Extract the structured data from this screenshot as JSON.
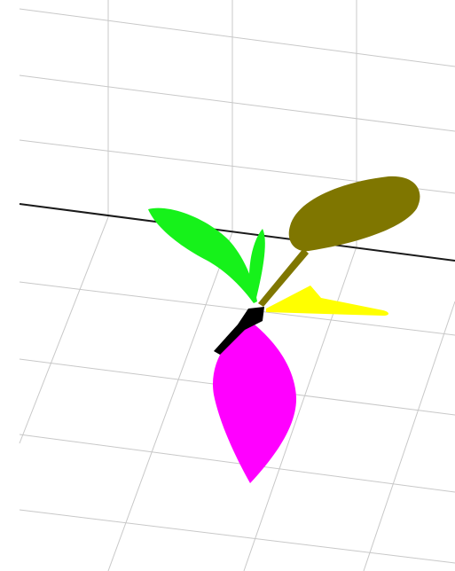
{
  "scene": {
    "background_color": "#ffffff",
    "grid_line_color": "#c8c8c8",
    "axis_line_color": "#1a1a1a",
    "segments": [
      {
        "id": "leaf-olive",
        "label": "",
        "color": "#7f7600"
      },
      {
        "id": "leaf-green",
        "label": "",
        "color": "#16f21a"
      },
      {
        "id": "leaf-yellow",
        "label": "",
        "color": "#ffff00"
      },
      {
        "id": "leaf-magenta",
        "label": "",
        "color": "#ff00ff"
      },
      {
        "id": "stem-black",
        "label": "",
        "color": "#000000"
      }
    ]
  }
}
